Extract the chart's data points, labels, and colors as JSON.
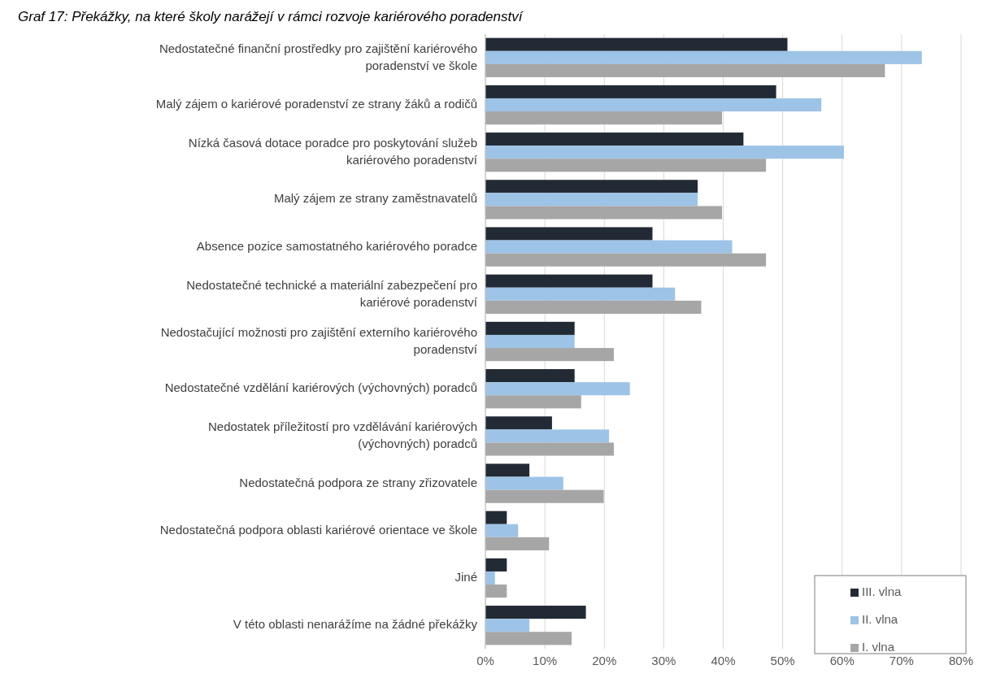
{
  "chart_data": {
    "type": "bar",
    "orientation": "horizontal",
    "title": "Graf 17: Překážky, na které školy narážejí v rámci rozvoje kariérového poradenství",
    "categories": [
      "Nedostatečné finanční prostředky pro zajištění kariérového poradenství ve škole",
      "Malý zájem o kariérové poradenství ze strany žáků a rodičů",
      "Nízká časová dotace poradce pro poskytování služeb kariérového poradenství",
      "Malý zájem ze strany zaměstnavatelů",
      "Absence pozice samostatného kariérového poradce",
      "Nedostatečné technické a materiální zabezpečení pro kariérové poradenství",
      "Nedostačující možnosti pro zajištění externího kariérového poradenství",
      "Nedostatečné vzdělání kariérových (výchovných) poradců",
      "Nedostatek příležitostí pro vzdělávání kariérových (výchovných) poradců",
      "Nedostatečná podpora ze strany zřizovatele",
      "Nedostatečná podpora oblasti kariérové orientace ve škole",
      "Jiné",
      "V této oblasti nenarážíme na žádné překážky"
    ],
    "series": [
      {
        "name": "III. vlna",
        "color": "#222a35",
        "values": [
          50.8,
          48.9,
          43.4,
          35.7,
          28.1,
          28.1,
          15.0,
          15.0,
          11.2,
          7.4,
          3.6,
          3.6,
          16.9
        ]
      },
      {
        "name": "II. vlna",
        "color": "#9dc3e6",
        "values": [
          73.4,
          56.5,
          60.3,
          35.7,
          41.5,
          31.9,
          15.0,
          24.3,
          20.8,
          13.1,
          5.5,
          1.6,
          7.4
        ]
      },
      {
        "name": "I. vlna",
        "color": "#a6a6a6",
        "values": [
          67.2,
          39.8,
          47.2,
          39.8,
          47.2,
          36.3,
          21.6,
          16.1,
          21.6,
          19.9,
          10.7,
          3.6,
          14.5
        ]
      }
    ],
    "xlim": [
      0,
      80
    ],
    "xticks": [
      {
        "value": 0,
        "label": "0%"
      },
      {
        "value": 10,
        "label": "10%"
      },
      {
        "value": 20,
        "label": "20%"
      },
      {
        "value": 30,
        "label": "30%"
      },
      {
        "value": 40,
        "label": "40%"
      },
      {
        "value": 50,
        "label": "50%"
      },
      {
        "value": 60,
        "label": "60%"
      },
      {
        "value": 70,
        "label": "70%"
      },
      {
        "value": 80,
        "label": "80%"
      }
    ],
    "grid": "x",
    "legend": "bottom right"
  }
}
